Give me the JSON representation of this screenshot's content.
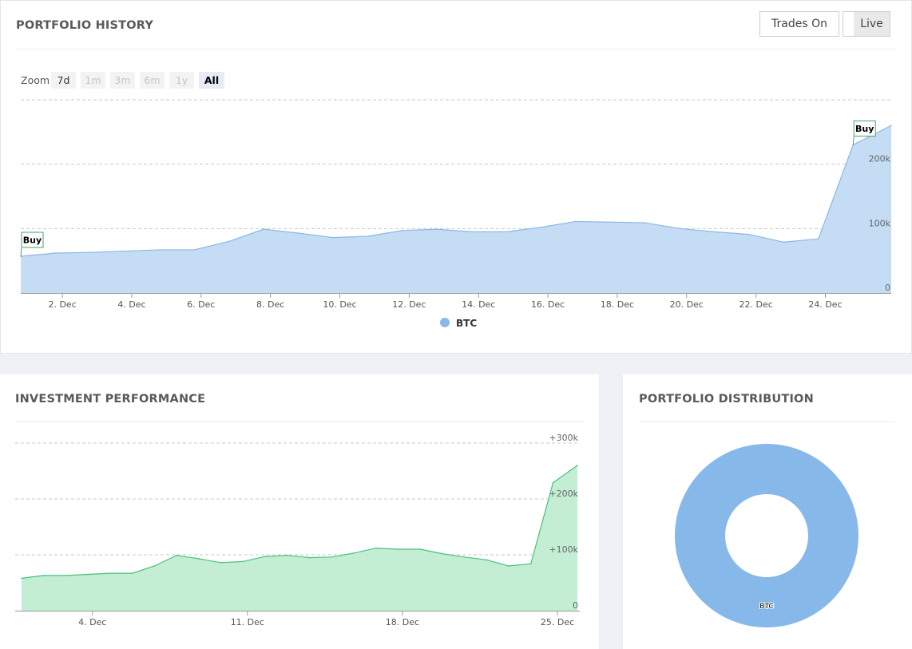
{
  "history": {
    "title": "PORTFOLIO HISTORY",
    "trades_label": "Trades On",
    "live_label": "Live",
    "zoom_label": "Zoom",
    "zoom_buttons": [
      {
        "label": "7d",
        "state": "enabled"
      },
      {
        "label": "1m",
        "state": "disabled"
      },
      {
        "label": "3m",
        "state": "disabled"
      },
      {
        "label": "6m",
        "state": "disabled"
      },
      {
        "label": "1y",
        "state": "disabled"
      },
      {
        "label": "All",
        "state": "selected"
      }
    ]
  },
  "performance": {
    "title": "INVESTMENT PERFORMANCE"
  },
  "distribution": {
    "title": "PORTFOLIO DISTRIBUTION"
  },
  "chart_data": [
    {
      "type": "area",
      "color": "#c4dcf4",
      "line_color": "#8fb8e2",
      "legend": "BTC",
      "legend_color": "#8ab8e8",
      "legend_position": "bottom-center",
      "grid": true,
      "ylim": [
        0,
        300000
      ],
      "yticks": [
        0,
        100000,
        200000
      ],
      "ytick_labels": [
        "0",
        "100k",
        "200k"
      ],
      "xlim": [
        0.8,
        25.9
      ],
      "xticks": [
        2,
        4,
        6,
        8,
        10,
        12,
        14,
        16,
        18,
        20,
        22,
        24
      ],
      "xtick_labels": [
        "2. Dec",
        "4. Dec",
        "6. Dec",
        "8. Dec",
        "10. Dec",
        "12. Dec",
        "14. Dec",
        "16. Dec",
        "18. Dec",
        "20. Dec",
        "22. Dec",
        "24. Dec"
      ],
      "x": [
        0.8,
        1.8,
        2.8,
        3.8,
        4.8,
        5.8,
        6.8,
        7.8,
        8.8,
        9.8,
        10.8,
        11.8,
        12.8,
        13.8,
        14.8,
        15.8,
        16.8,
        17.8,
        18.8,
        19.8,
        20.8,
        21.8,
        22.8,
        23.8,
        24.8,
        25.9
      ],
      "y": [
        57000,
        62000,
        63000,
        65000,
        67000,
        67000,
        80000,
        99000,
        93000,
        86000,
        88000,
        97000,
        99000,
        95000,
        95000,
        102000,
        111000,
        110000,
        109000,
        100000,
        95000,
        91000,
        79000,
        84000,
        230000,
        260000
      ],
      "markers": [
        {
          "x": 0.8,
          "y": 57000,
          "label": "Buy"
        },
        {
          "x": 24.8,
          "y": 230000,
          "label": "Buy"
        }
      ]
    },
    {
      "type": "area",
      "color": "#c3eed4",
      "line_color": "#47c27c",
      "grid": true,
      "ylim": [
        0,
        310000
      ],
      "yticks": [
        0,
        100000,
        200000,
        300000
      ],
      "ytick_labels": [
        "0",
        "+100k",
        "+200k",
        "+300k"
      ],
      "xlim": [
        0.8,
        25.9
      ],
      "xticks": [
        4,
        11,
        18,
        25
      ],
      "xtick_labels": [
        "4. Dec",
        "11. Dec",
        "18. Dec",
        "25. Dec"
      ],
      "x": [
        0.8,
        1.8,
        2.8,
        3.8,
        4.8,
        5.8,
        6.8,
        7.8,
        8.8,
        9.8,
        10.8,
        11.8,
        12.8,
        13.8,
        14.8,
        15.8,
        16.8,
        17.8,
        18.8,
        19.8,
        20.8,
        21.8,
        22.8,
        23.8,
        24.8,
        25.9
      ],
      "y": [
        58000,
        63000,
        63000,
        65000,
        67000,
        67000,
        80000,
        99000,
        93000,
        86000,
        88000,
        97000,
        99000,
        95000,
        96000,
        103000,
        112000,
        110000,
        110000,
        102000,
        96000,
        91000,
        80000,
        84000,
        229000,
        260000
      ]
    },
    {
      "type": "pie",
      "donut": true,
      "labels": [
        "BTC"
      ],
      "values": [
        100
      ],
      "colors": [
        "#87b8ea"
      ]
    }
  ]
}
